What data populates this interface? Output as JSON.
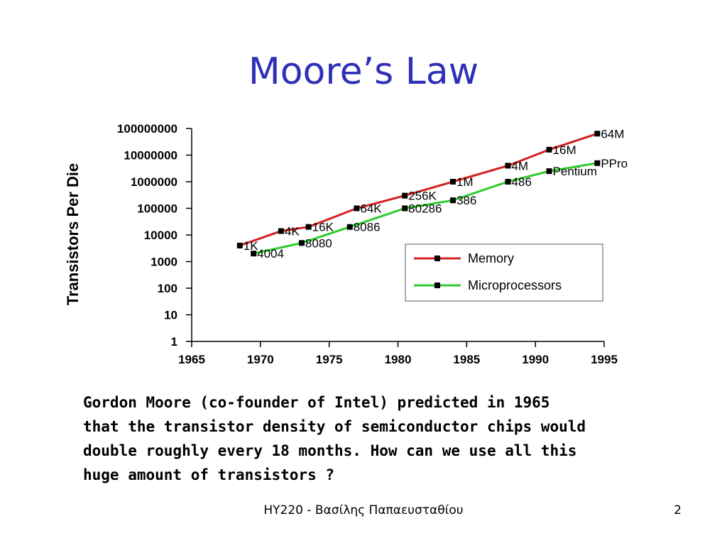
{
  "title": "Moore’s Law",
  "chart_data": {
    "type": "line",
    "y_label": "Transistors Per Die",
    "log_y": true,
    "xlim": [
      1965,
      1995
    ],
    "xticks": [
      1965,
      1970,
      1975,
      1980,
      1985,
      1990,
      1995
    ],
    "ylim": [
      1,
      100000000
    ],
    "yticks": [
      1,
      10,
      100,
      1000,
      10000,
      100000,
      1000000,
      10000000,
      100000000
    ],
    "legend": "lower-right",
    "series": [
      {
        "name": "Memory",
        "color": "#d42020",
        "x": [
          1968.5,
          1971.5,
          1973.5,
          1977,
          1980.5,
          1984,
          1988,
          1991,
          1994.5
        ],
        "values": [
          4000,
          14000,
          20000,
          100000,
          300000,
          1000000,
          4000000,
          16000000,
          64000000
        ],
        "point_labels": [
          "1K",
          "4K",
          "16K",
          "64K",
          "256K",
          "1M",
          "4M",
          "16M",
          "64M"
        ]
      },
      {
        "name": "Microprocessors",
        "color": "#2ecc2e",
        "x": [
          1969.5,
          1973,
          1976.5,
          1980.5,
          1984,
          1988,
          1991,
          1994.5
        ],
        "values": [
          2000,
          5000,
          20000,
          100000,
          200000,
          1000000,
          2500000,
          5000000
        ],
        "point_labels": [
          "4004",
          "8080",
          "8086",
          "80286",
          "386",
          "486",
          "Pentium",
          "PPro"
        ]
      }
    ]
  },
  "paragraph": [
    "Gordon Moore (co-founder of Intel) predicted in 1965",
    "that the transistor density of semiconductor chips would",
    "double roughly every 18 months. How can we use all this",
    "huge amount of transistors ?"
  ],
  "footer": "HY220 - Βασίλης Παπαευσταθίου",
  "page_number": "2"
}
